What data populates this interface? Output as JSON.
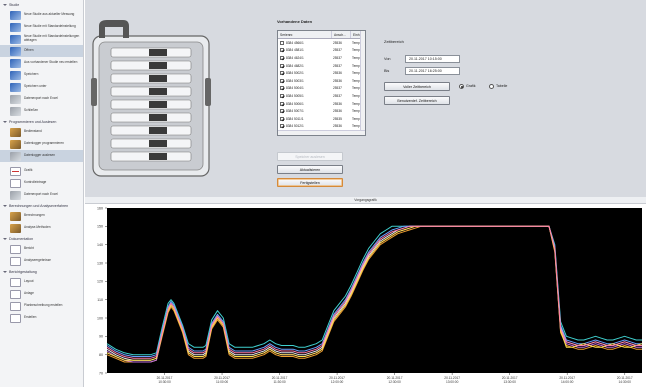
{
  "sidebar": {
    "sections": [
      {
        "label": "Studie",
        "items": [
          {
            "label": "Neue Studie aus aktueller Messung",
            "icon": "new-study-icon",
            "type": "blue"
          },
          {
            "label": "Neue Studie mit Standardeinstellung",
            "icon": "new-study-default-icon",
            "type": "blue"
          },
          {
            "label": "Neue Studie mit Standardeinstellungen abfragen",
            "icon": "new-study-query-icon",
            "type": "blue"
          },
          {
            "label": "Öffnen",
            "icon": "folder-open-icon",
            "type": "blue",
            "selected": true
          },
          {
            "label": "Aus vorhandener Studie neu erstellen",
            "icon": "study-copy-icon",
            "type": "blue"
          },
          {
            "label": "Speichern",
            "icon": "save-icon",
            "type": "blue"
          },
          {
            "label": "Speichern unter",
            "icon": "save-as-icon",
            "type": "blue"
          },
          {
            "label": "Datenexport nach Excel",
            "icon": "excel-export-icon",
            "type": "gray"
          },
          {
            "label": "Schließen",
            "icon": "close-study-icon",
            "type": "gray"
          }
        ]
      },
      {
        "label": "Programmieren und Auslesen",
        "items": [
          {
            "label": "Bedienstand",
            "icon": "device-status-icon",
            "type": "tool"
          },
          {
            "label": "Datenlogger programmieren",
            "icon": "logger-program-icon",
            "type": "tool"
          },
          {
            "label": "Datenlogger auslesen",
            "icon": "logger-read-icon",
            "type": "gray",
            "selected": true
          }
        ]
      },
      {
        "label": "",
        "items": [
          {
            "label": "Grafik",
            "icon": "graph-icon",
            "type": "chart"
          },
          {
            "label": "Kontrolleintrage",
            "icon": "control-entry-icon",
            "type": "doc"
          },
          {
            "label": "Datenexport nach Excel",
            "icon": "excel-export-2-icon",
            "type": "gray"
          }
        ]
      },
      {
        "label": "Berechnungen und Analyseverfahren",
        "items": [
          {
            "label": "Berechnungen",
            "icon": "calculation-icon",
            "type": "tool"
          },
          {
            "label": "Analyse-Methoden",
            "icon": "analysis-icon",
            "type": "tool"
          }
        ]
      },
      {
        "label": "Dokumentation",
        "items": [
          {
            "label": "Bericht",
            "icon": "report-icon",
            "type": "doc"
          },
          {
            "label": "Analyseergebnisse",
            "icon": "analysis-results-icon",
            "type": "doc"
          }
        ]
      },
      {
        "label": "Berichtgestaltung",
        "items": [
          {
            "label": "Layout",
            "icon": "layout-icon",
            "type": "doc"
          },
          {
            "label": "Anlage",
            "icon": "attachment-icon",
            "type": "doc"
          },
          {
            "label": "Planbeschreibung erstellen",
            "icon": "plan-description-icon",
            "type": "doc"
          },
          {
            "label": "Erstellen",
            "icon": "create-icon",
            "type": "doc"
          }
        ]
      }
    ]
  },
  "data_table": {
    "title": "Vorhandene Daten",
    "columns": [
      "Seriennr.",
      "Ansch...",
      "Einh...",
      ""
    ],
    "rows": [
      {
        "serial": "8384 4566/1",
        "conn": "25536",
        "unit": "Temp...",
        "checked": false
      },
      {
        "serial": "8384 4581/1",
        "conn": "25537",
        "unit": "Temp...",
        "checked": true
      },
      {
        "serial": "8384 4624/1",
        "conn": "25537",
        "unit": "Temp...",
        "checked": true
      },
      {
        "serial": "8384 4682/1",
        "conn": "25537",
        "unit": "Temp...",
        "checked": true
      },
      {
        "serial": "8384 5002/1",
        "conn": "25536",
        "unit": "Temp...",
        "checked": true
      },
      {
        "serial": "8384 5003/1",
        "conn": "25536",
        "unit": "Temp...",
        "checked": true
      },
      {
        "serial": "8384 5004/1",
        "conn": "25537",
        "unit": "Temp...",
        "checked": true
      },
      {
        "serial": "8384 5005/1",
        "conn": "25537",
        "unit": "Temp...",
        "checked": true
      },
      {
        "serial": "8384 5006/1",
        "conn": "25536",
        "unit": "Temp...",
        "checked": true
      },
      {
        "serial": "8384 5007/1",
        "conn": "25536",
        "unit": "Temp...",
        "checked": true
      },
      {
        "serial": "8384 5011/1",
        "conn": "25535",
        "unit": "Temp...",
        "checked": true
      },
      {
        "serial": "8384 5012/1",
        "conn": "25536",
        "unit": "Temp...",
        "checked": true
      }
    ]
  },
  "buttons": {
    "clear_memory": "Speicher auslesen",
    "refresh": "Aktualisieren",
    "finish": "Fertigstellen",
    "full_range": "Voller Zeitbereich",
    "custom_range": "Benutzerdef. Zeitbereich"
  },
  "time_range": {
    "title": "Zeitbereich",
    "from_label": "Von",
    "from_value": "20.11.2017 10:15:00",
    "to_label": "Bis",
    "to_value": "20.11.2017 16:25:00",
    "radio_graph": "Grafik",
    "radio_table": "Tabelle",
    "selected": "graph"
  },
  "chart_header": "Vorgangsgrafik",
  "chart_data": {
    "type": "line",
    "title": "Vorgangsgrafik",
    "ylim": [
      70,
      160
    ],
    "y_ticks": [
      70,
      80,
      90,
      100,
      110,
      120,
      130,
      140,
      150,
      160
    ],
    "x_tick_labels": [
      "20.11.2017\n10:30:00",
      "20.11.2017\n11:00:00",
      "20.11.2017\n11:30:00",
      "20.11.2017\n12:00:00",
      "20.11.2017\n12:30:00",
      "20.11.2017\n13:00:00",
      "20.11.2017\n13:30:00",
      "20.11.2017\n14:00:00",
      "20.11.2017\n14:30:00"
    ],
    "x": [
      0,
      6,
      12,
      18,
      22,
      26,
      30,
      34,
      38,
      42,
      44,
      46,
      48,
      52,
      56,
      60,
      64,
      66,
      68,
      72,
      76,
      80,
      84,
      88,
      92,
      96,
      100,
      104,
      108,
      112,
      116,
      120,
      124,
      128,
      132,
      136,
      140,
      144,
      148,
      152,
      156,
      160,
      164,
      168,
      172,
      176,
      180,
      184,
      188,
      192,
      196,
      200,
      204,
      208,
      212,
      216,
      220,
      224,
      228,
      232,
      236,
      240,
      244,
      248,
      252,
      256,
      260,
      264,
      268,
      272,
      276,
      280,
      284,
      288,
      292,
      296,
      300,
      304,
      308,
      312,
      316,
      320,
      324,
      328,
      332,
      336,
      340,
      344,
      348,
      352,
      356,
      360,
      364,
      368
    ],
    "series": [
      {
        "color": "#3fd1d0",
        "values": [
          86,
          83,
          81,
          80,
          80,
          80,
          80,
          81,
          95,
          108,
          110,
          108,
          104,
          96,
          86,
          84,
          84,
          84,
          85,
          99,
          104,
          100,
          86,
          84,
          84,
          84,
          84,
          85,
          86,
          88,
          86,
          85,
          85,
          85,
          84,
          84,
          85,
          86,
          88,
          96,
          104,
          108,
          112,
          118,
          125,
          132,
          138,
          142,
          146,
          148,
          150,
          150,
          150,
          150,
          150,
          150,
          150,
          150,
          150,
          150,
          150,
          150,
          150,
          150,
          150,
          150,
          150,
          150,
          150,
          150,
          150,
          150,
          150,
          150,
          150,
          150,
          150,
          150,
          140,
          98,
          90,
          89,
          88,
          88,
          89,
          90,
          89,
          88,
          88,
          89,
          90,
          89,
          88,
          88
        ]
      },
      {
        "color": "#e8e8ee",
        "values": [
          83,
          80,
          78,
          77,
          77,
          77,
          77,
          78,
          92,
          105,
          108,
          106,
          102,
          94,
          82,
          80,
          80,
          80,
          81,
          96,
          101,
          97,
          82,
          80,
          80,
          80,
          80,
          81,
          82,
          84,
          82,
          81,
          81,
          81,
          80,
          80,
          81,
          82,
          84,
          92,
          100,
          104,
          108,
          114,
          121,
          128,
          134,
          138,
          142,
          144,
          146,
          148,
          149,
          150,
          150,
          150,
          150,
          150,
          150,
          150,
          150,
          150,
          150,
          150,
          150,
          150,
          150,
          150,
          150,
          150,
          150,
          150,
          150,
          150,
          150,
          150,
          150,
          150,
          138,
          95,
          87,
          86,
          85,
          85,
          86,
          87,
          86,
          85,
          85,
          86,
          87,
          86,
          85,
          85
        ]
      },
      {
        "color": "#f0a030",
        "values": [
          80,
          78,
          76,
          76,
          76,
          76,
          76,
          77,
          90,
          103,
          106,
          104,
          100,
          92,
          80,
          78,
          78,
          78,
          79,
          94,
          99,
          95,
          80,
          78,
          78,
          78,
          78,
          79,
          80,
          82,
          80,
          79,
          79,
          79,
          78,
          78,
          79,
          80,
          82,
          90,
          98,
          102,
          106,
          112,
          119,
          126,
          132,
          136,
          140,
          142,
          144,
          146,
          147,
          148,
          149,
          150,
          150,
          150,
          150,
          150,
          150,
          150,
          150,
          150,
          150,
          150,
          150,
          150,
          150,
          150,
          150,
          150,
          150,
          150,
          150,
          150,
          150,
          150,
          136,
          92,
          85,
          84,
          83,
          83,
          84,
          85,
          84,
          83,
          83,
          84,
          85,
          84,
          83,
          83
        ]
      },
      {
        "color": "#6aa0ff",
        "values": [
          85,
          82,
          80,
          79,
          79,
          79,
          79,
          80,
          93,
          106,
          109,
          107,
          103,
          95,
          84,
          82,
          82,
          82,
          83,
          97,
          102,
          98,
          84,
          82,
          82,
          82,
          82,
          83,
          84,
          86,
          84,
          83,
          83,
          83,
          82,
          82,
          83,
          84,
          86,
          94,
          102,
          106,
          110,
          116,
          123,
          130,
          136,
          140,
          144,
          146,
          148,
          149,
          150,
          150,
          150,
          150,
          150,
          150,
          150,
          150,
          150,
          150,
          150,
          150,
          150,
          150,
          150,
          150,
          150,
          150,
          150,
          150,
          150,
          150,
          150,
          150,
          150,
          150,
          139,
          96,
          88,
          87,
          86,
          86,
          87,
          88,
          87,
          86,
          86,
          87,
          88,
          87,
          86,
          86
        ]
      },
      {
        "color": "#c070e0",
        "values": [
          82,
          79,
          77,
          76,
          76,
          76,
          76,
          77,
          91,
          104,
          107,
          105,
          101,
          93,
          81,
          79,
          79,
          79,
          80,
          95,
          100,
          96,
          81,
          79,
          79,
          79,
          79,
          80,
          81,
          83,
          81,
          80,
          80,
          80,
          79,
          79,
          80,
          81,
          83,
          91,
          99,
          103,
          107,
          113,
          120,
          127,
          133,
          137,
          141,
          143,
          145,
          147,
          148,
          149,
          150,
          150,
          150,
          150,
          150,
          150,
          150,
          150,
          150,
          150,
          150,
          150,
          150,
          150,
          150,
          150,
          150,
          150,
          150,
          150,
          150,
          150,
          150,
          150,
          137,
          93,
          86,
          85,
          84,
          84,
          85,
          86,
          85,
          84,
          84,
          85,
          86,
          85,
          84,
          84
        ]
      },
      {
        "color": "#ffe04a",
        "values": [
          81,
          79,
          77,
          77,
          77,
          77,
          77,
          78,
          91,
          104,
          107,
          105,
          101,
          93,
          81,
          79,
          79,
          79,
          80,
          95,
          100,
          96,
          81,
          79,
          79,
          79,
          79,
          80,
          81,
          83,
          81,
          80,
          80,
          80,
          79,
          79,
          80,
          81,
          83,
          91,
          99,
          103,
          107,
          113,
          120,
          127,
          133,
          137,
          141,
          143,
          145,
          147,
          148,
          149,
          150,
          150,
          150,
          150,
          150,
          150,
          150,
          150,
          150,
          150,
          150,
          150,
          150,
          150,
          150,
          150,
          150,
          150,
          150,
          150,
          150,
          150,
          150,
          150,
          137,
          93,
          84,
          84,
          85,
          86,
          85,
          84,
          84,
          85,
          86,
          85,
          84,
          84,
          85,
          86
        ]
      },
      {
        "color": "#ff7aa8",
        "values": [
          84,
          81,
          79,
          78,
          78,
          78,
          78,
          79,
          92,
          105,
          108,
          106,
          102,
          94,
          83,
          81,
          81,
          81,
          82,
          96,
          101,
          97,
          83,
          81,
          81,
          81,
          81,
          82,
          83,
          85,
          83,
          82,
          82,
          82,
          81,
          81,
          82,
          83,
          85,
          93,
          101,
          105,
          109,
          115,
          122,
          129,
          135,
          139,
          143,
          145,
          147,
          148,
          149,
          150,
          150,
          150,
          150,
          150,
          150,
          150,
          150,
          150,
          150,
          150,
          150,
          150,
          150,
          150,
          150,
          150,
          150,
          150,
          150,
          150,
          150,
          150,
          150,
          150,
          138,
          94,
          87,
          86,
          85,
          85,
          86,
          87,
          86,
          85,
          85,
          86,
          87,
          86,
          85,
          85
        ]
      }
    ],
    "grid": false,
    "legend": "none"
  }
}
